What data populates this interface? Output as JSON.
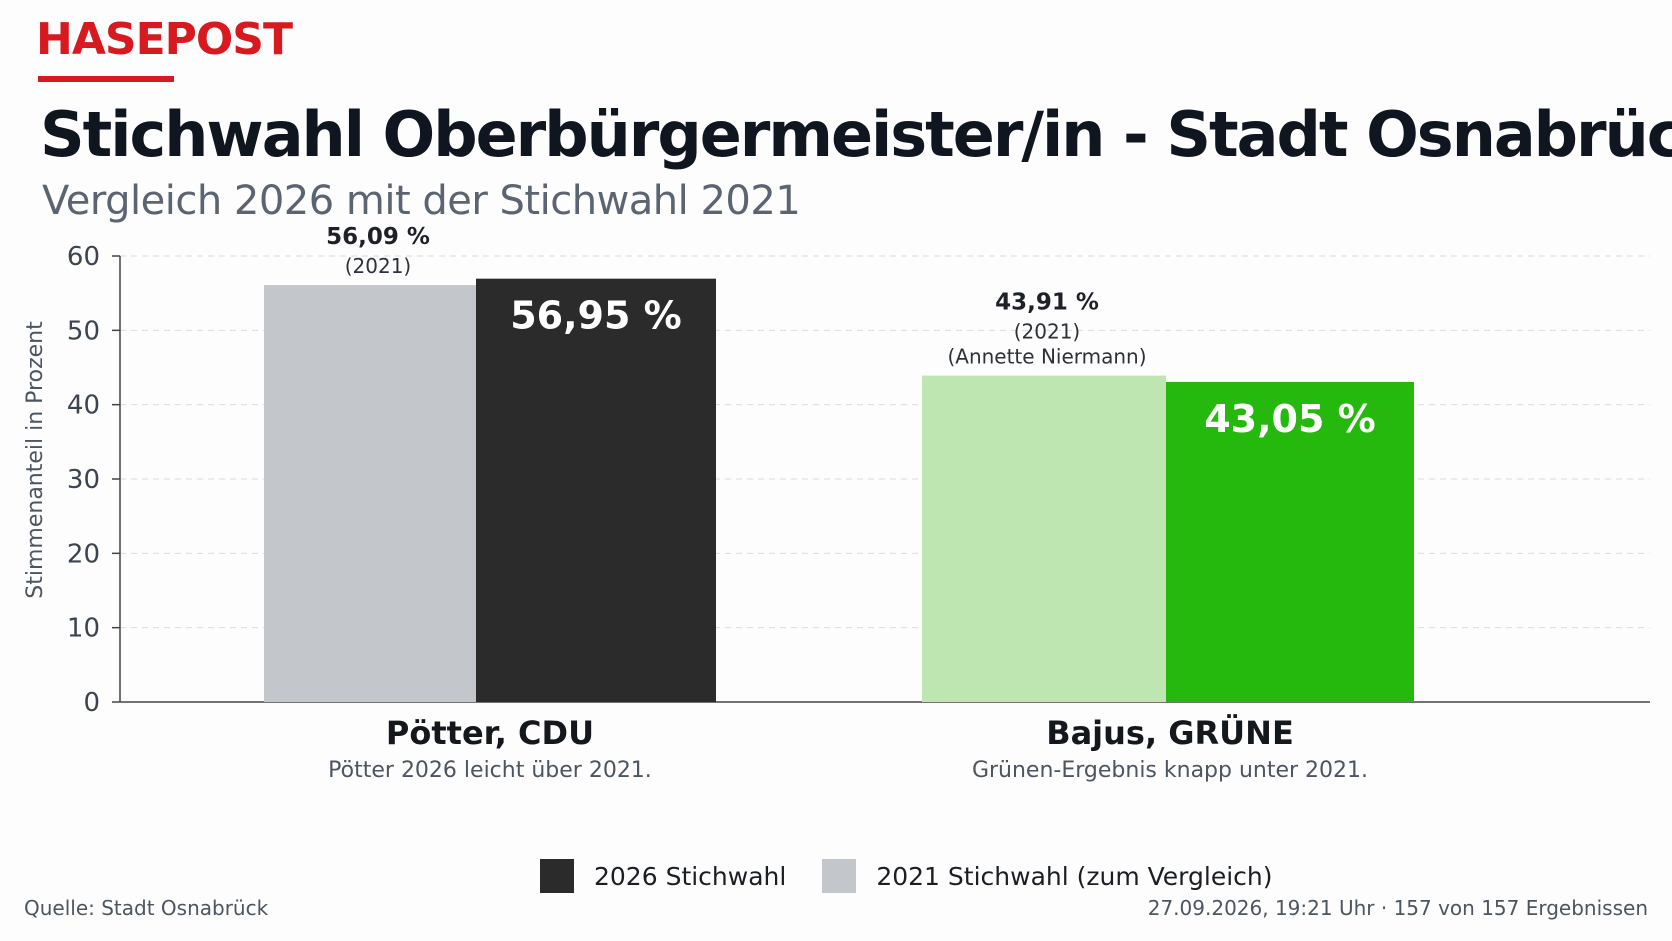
{
  "header": {
    "brand": "HASEPOST",
    "title": "Stichwahl Oberbürgermeister/in - Stadt Osnabrück",
    "subtitle": "Vergleich 2026 mit der Stichwahl 2021"
  },
  "chart_data": {
    "type": "bar",
    "categories": [
      "Pötter, CDU",
      "Bajus, GRÜNE"
    ],
    "category_notes": [
      "Pötter 2026 leicht über 2021.",
      "Grünen-Ergebnis knapp unter 2021."
    ],
    "series": [
      {
        "name": "2021 Stichwahl (zum Vergleich)",
        "values": [
          56.09,
          43.91
        ],
        "colors": [
          "#c3c6ca",
          "#bde6b0"
        ],
        "labels": [
          "56,09 %",
          "43,91 %"
        ],
        "label_notes": [
          [
            "(2021)"
          ],
          [
            "(2021)",
            "(Annette Niermann)"
          ]
        ]
      },
      {
        "name": "2026 Stichwahl",
        "values": [
          56.95,
          43.05
        ],
        "colors": [
          "#2b2b2b",
          "#25b80d"
        ],
        "labels": [
          "56,95 %",
          "43,05 %"
        ]
      }
    ],
    "xlabel": "",
    "ylabel": "Stimmenanteil in Prozent",
    "ylim": [
      0,
      60
    ],
    "yticks": [
      "0",
      "10",
      "20",
      "30",
      "40",
      "50",
      "60"
    ],
    "grid": true,
    "legend": "bottom-center"
  },
  "legend": {
    "items": [
      {
        "label": "2026 Stichwahl",
        "color": "#2b2b2b"
      },
      {
        "label": "2021 Stichwahl (zum Vergleich)",
        "color": "#c3c6ca"
      }
    ]
  },
  "footer": {
    "source": "Quelle: Stadt Osnabrück",
    "status": "27.09.2026, 19:21 Uhr · 157 von 157 Ergebnissen"
  }
}
